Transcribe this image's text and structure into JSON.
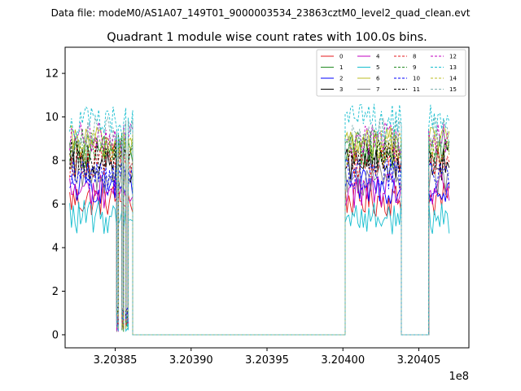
{
  "figure": {
    "suptitle": "Data file: modeM0/AS1A07_149T01_9000003534_23863cztM0_level2_quad_clean.evt"
  },
  "chart_data": {
    "type": "line",
    "title": "Quadrant 1 module wise count rates with 100.0s bins.",
    "xlabel": "",
    "ylabel": "",
    "x_offset_label": "1e8",
    "xlim": [
      3.203817,
      3.204083
    ],
    "ylim": [
      -0.6,
      13.2
    ],
    "x_ticks": [
      3.20385,
      3.2039,
      3.20395,
      3.204,
      3.20405
    ],
    "x_tick_labels": [
      "3.20385",
      "3.20390",
      "3.20395",
      "3.20400",
      "3.20405"
    ],
    "y_ticks": [
      0,
      2,
      4,
      6,
      8,
      10,
      12
    ],
    "y_tick_labels": [
      "0",
      "2",
      "4",
      "6",
      "8",
      "10",
      "12"
    ],
    "grid": false,
    "legend_position": "top-right",
    "legend_columns": 4,
    "segments": [
      {
        "start": 3.20382,
        "end": 3.203851,
        "level": "on"
      },
      {
        "start": 3.203851,
        "end": 3.203852,
        "level": "dip"
      },
      {
        "start": 3.203852,
        "end": 3.2038545,
        "level": "on"
      },
      {
        "start": 3.2038545,
        "end": 3.2038555,
        "level": "dip"
      },
      {
        "start": 3.2038555,
        "end": 3.203857,
        "level": "on"
      },
      {
        "start": 3.203857,
        "end": 3.2038585,
        "level": "dip"
      },
      {
        "start": 3.2038585,
        "end": 3.2038615,
        "level": "on"
      },
      {
        "start": 3.2038615,
        "end": 3.2038635,
        "level": "zero"
      },
      {
        "start": 3.2038635,
        "end": 3.2040015,
        "level": "zero"
      },
      {
        "start": 3.2040015,
        "end": 3.2040385,
        "level": "on"
      },
      {
        "start": 3.2040385,
        "end": 3.2040405,
        "level": "zero"
      },
      {
        "start": 3.2040405,
        "end": 3.2040565,
        "level": "zero"
      },
      {
        "start": 3.2040565,
        "end": 3.20407,
        "level": "on"
      }
    ],
    "series": [
      {
        "name": "0",
        "color": "#e41a1c",
        "dash": "solid",
        "mean": 6.2
      },
      {
        "name": "1",
        "color": "#228b22",
        "dash": "solid",
        "mean": 8.4
      },
      {
        "name": "2",
        "color": "#0000ff",
        "dash": "solid",
        "mean": 6.8
      },
      {
        "name": "3",
        "color": "#000000",
        "dash": "solid",
        "mean": 7.8
      },
      {
        "name": "4",
        "color": "#c000c0",
        "dash": "solid",
        "mean": 6.6
      },
      {
        "name": "5",
        "color": "#17becf",
        "dash": "solid",
        "mean": 5.4
      },
      {
        "name": "6",
        "color": "#bcbd22",
        "dash": "solid",
        "mean": 8.8
      },
      {
        "name": "7",
        "color": "#7f7f7f",
        "dash": "solid",
        "mean": 7.2
      },
      {
        "name": "8",
        "color": "#e41a1c",
        "dash": "dashed",
        "mean": 8.0
      },
      {
        "name": "9",
        "color": "#228b22",
        "dash": "dashed",
        "mean": 8.7
      },
      {
        "name": "10",
        "color": "#0000ff",
        "dash": "dashed",
        "mean": 7.4
      },
      {
        "name": "11",
        "color": "#000000",
        "dash": "dashed",
        "mean": 8.2
      },
      {
        "name": "12",
        "color": "#c000c0",
        "dash": "dashed",
        "mean": 9.0
      },
      {
        "name": "13",
        "color": "#17becf",
        "dash": "dashed",
        "mean": 9.8
      },
      {
        "name": "14",
        "color": "#bcbd22",
        "dash": "dashed",
        "mean": 8.6
      },
      {
        "name": "15",
        "color": "#7fb0b0",
        "dash": "dashed",
        "mean": 9.2
      }
    ]
  }
}
